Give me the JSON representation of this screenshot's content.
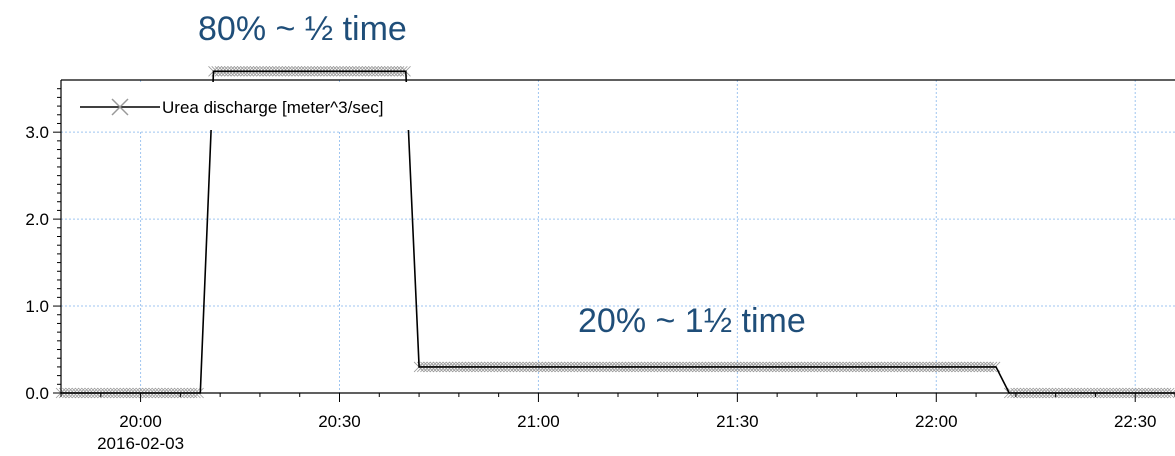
{
  "chart_data": {
    "type": "line",
    "title": "",
    "xlabel": "",
    "ylabel": "",
    "x_range": [
      "19:48",
      "22:36"
    ],
    "ylim": [
      0,
      3.6
    ],
    "grid": true,
    "legend_position": "top-left",
    "x_ticks": [
      "20:00",
      "20:30",
      "21:00",
      "21:30",
      "22:00",
      "22:30"
    ],
    "x_date_label": "2016-02-03",
    "y_ticks": [
      "0.0",
      "1.0",
      "2.0",
      "3.0"
    ],
    "series": [
      {
        "name": "Urea discharge [meter^3/sec]",
        "color": "#000000",
        "marker": "x",
        "points": [
          {
            "x": "19:48",
            "y": 0.0
          },
          {
            "x": "20:09",
            "y": 0.0
          },
          {
            "x": "20:11",
            "y": 3.7
          },
          {
            "x": "20:40",
            "y": 3.7
          },
          {
            "x": "20:42",
            "y": 0.3
          },
          {
            "x": "22:09",
            "y": 0.3
          },
          {
            "x": "22:11",
            "y": 0.0
          },
          {
            "x": "22:36",
            "y": 0.0
          }
        ]
      }
    ],
    "annotations": [
      "80% ~ ½ time",
      "20% ~ 1½ time"
    ]
  }
}
